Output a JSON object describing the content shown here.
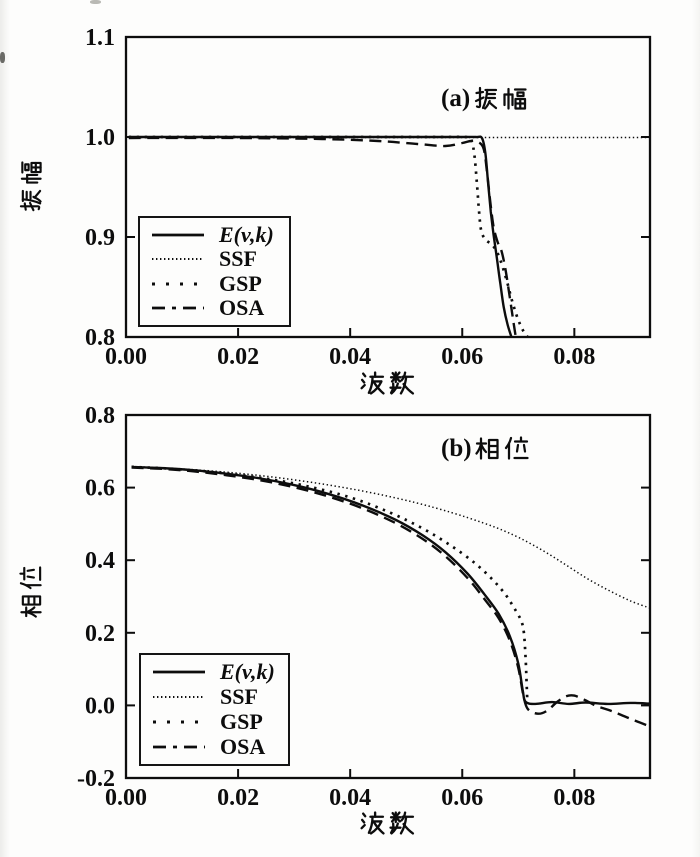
{
  "page": {
    "background": "#fdfdfc",
    "ink": "#0d0d0d"
  },
  "chart_data": [
    {
      "id": "amplitude",
      "type": "line",
      "title_prefix": "(a)",
      "title_cjk": "振幅",
      "xlabel": "波数",
      "ylabel": "振幅",
      "xlim": [
        0,
        0.0935
      ],
      "ylim": [
        0.8,
        1.1
      ],
      "grid": false,
      "x_ticks": {
        "values": [
          0,
          0.02,
          0.04,
          0.06,
          0.08
        ],
        "labels": [
          "0.00",
          "0.02",
          "0.04",
          "0.06",
          "0.08"
        ]
      },
      "y_ticks": {
        "values": [
          1.1,
          1.0,
          0.9,
          0.8
        ],
        "labels": [
          "1.1",
          "1.0",
          "0.9",
          "0.8"
        ]
      },
      "legend": {
        "position": "lower-left",
        "entries": [
          {
            "label": "E(v,k)",
            "style": "solid",
            "italic": true
          },
          {
            "label": "SSF",
            "style": "fine-dot",
            "italic": false
          },
          {
            "label": "GSP",
            "style": "dot",
            "italic": false
          },
          {
            "label": "OSA",
            "style": "dash",
            "italic": false
          }
        ]
      },
      "series": [
        {
          "name": "SSF",
          "style": "fine-dot",
          "points": [
            [
              0.0005,
              0.9995
            ],
            [
              0.0935,
              0.9995
            ]
          ]
        },
        {
          "name": "GSP",
          "style": "dot",
          "points": [
            [
              0.0005,
              1.0
            ],
            [
              0.02,
              1.0
            ],
            [
              0.04,
              1.0
            ],
            [
              0.055,
              1.0
            ],
            [
              0.0605,
              1.0
            ],
            [
              0.0615,
              0.998
            ],
            [
              0.0621,
              0.985
            ],
            [
              0.0626,
              0.955
            ],
            [
              0.063,
              0.925
            ],
            [
              0.0634,
              0.906
            ],
            [
              0.0642,
              0.897
            ],
            [
              0.0652,
              0.893
            ],
            [
              0.0662,
              0.885
            ],
            [
              0.0671,
              0.872
            ],
            [
              0.068,
              0.855
            ],
            [
              0.069,
              0.834
            ],
            [
              0.07,
              0.817
            ],
            [
              0.071,
              0.805
            ],
            [
              0.072,
              0.798
            ]
          ]
        },
        {
          "name": "OSA",
          "style": "dash",
          "points": [
            [
              0.0005,
              0.999
            ],
            [
              0.02,
              0.999
            ],
            [
              0.035,
              0.998
            ],
            [
              0.045,
              0.996
            ],
            [
              0.052,
              0.993
            ],
            [
              0.057,
              0.991
            ],
            [
              0.06,
              0.994
            ],
            [
              0.062,
              0.996
            ],
            [
              0.0637,
              0.99
            ],
            [
              0.0644,
              0.966
            ],
            [
              0.065,
              0.935
            ],
            [
              0.0656,
              0.91
            ],
            [
              0.0663,
              0.895
            ],
            [
              0.067,
              0.886
            ],
            [
              0.0677,
              0.868
            ],
            [
              0.0684,
              0.843
            ],
            [
              0.069,
              0.82
            ],
            [
              0.0696,
              0.798
            ]
          ]
        },
        {
          "name": "E(v,k)",
          "style": "solid",
          "points": [
            [
              0.0005,
              1.0
            ],
            [
              0.02,
              1.0
            ],
            [
              0.04,
              1.0
            ],
            [
              0.055,
              1.0
            ],
            [
              0.06,
              1.0
            ],
            [
              0.0625,
              1.0
            ],
            [
              0.0635,
              0.999
            ],
            [
              0.0641,
              0.985
            ],
            [
              0.0646,
              0.955
            ],
            [
              0.0651,
              0.925
            ],
            [
              0.0656,
              0.902
            ],
            [
              0.0662,
              0.878
            ],
            [
              0.0668,
              0.853
            ],
            [
              0.0674,
              0.83
            ],
            [
              0.0681,
              0.812
            ],
            [
              0.0689,
              0.798
            ]
          ]
        }
      ]
    },
    {
      "id": "phase",
      "type": "line",
      "title_prefix": "(b)",
      "title_cjk": "相位",
      "xlabel": "波数",
      "ylabel": "相位",
      "xlim": [
        0,
        0.0935
      ],
      "ylim": [
        -0.2,
        0.8
      ],
      "grid": false,
      "x_ticks": {
        "values": [
          0,
          0.02,
          0.04,
          0.06,
          0.08
        ],
        "labels": [
          "0.00",
          "0.02",
          "0.04",
          "0.06",
          "0.08"
        ]
      },
      "y_ticks": {
        "values": [
          0.8,
          0.6,
          0.4,
          0.2,
          0.0,
          -0.2
        ],
        "labels": [
          "0.8",
          "0.6",
          "0.4",
          "0.2",
          "0.0",
          "-0.2"
        ]
      },
      "legend": {
        "position": "lower-left",
        "entries": [
          {
            "label": "E(v,k)",
            "style": "solid",
            "italic": true
          },
          {
            "label": "SSF",
            "style": "fine-dot",
            "italic": false
          },
          {
            "label": "GSP",
            "style": "dot",
            "italic": false
          },
          {
            "label": "OSA",
            "style": "dash",
            "italic": false
          }
        ]
      },
      "series": [
        {
          "name": "SSF",
          "style": "fine-dot",
          "points": [
            [
              0.001,
              0.658
            ],
            [
              0.008,
              0.653
            ],
            [
              0.016,
              0.645
            ],
            [
              0.024,
              0.633
            ],
            [
              0.032,
              0.617
            ],
            [
              0.04,
              0.597
            ],
            [
              0.048,
              0.572
            ],
            [
              0.055,
              0.545
            ],
            [
              0.061,
              0.517
            ],
            [
              0.066,
              0.49
            ],
            [
              0.07,
              0.463
            ],
            [
              0.074,
              0.43
            ],
            [
              0.078,
              0.392
            ],
            [
              0.082,
              0.352
            ],
            [
              0.086,
              0.318
            ],
            [
              0.09,
              0.288
            ],
            [
              0.0935,
              0.268
            ]
          ]
        },
        {
          "name": "GSP",
          "style": "dot",
          "points": [
            [
              0.001,
              0.657
            ],
            [
              0.008,
              0.652
            ],
            [
              0.016,
              0.642
            ],
            [
              0.024,
              0.627
            ],
            [
              0.032,
              0.605
            ],
            [
              0.04,
              0.573
            ],
            [
              0.047,
              0.532
            ],
            [
              0.053,
              0.487
            ],
            [
              0.058,
              0.44
            ],
            [
              0.062,
              0.395
            ],
            [
              0.065,
              0.353
            ],
            [
              0.0675,
              0.31
            ],
            [
              0.069,
              0.275
            ],
            [
              0.07,
              0.249
            ],
            [
              0.0706,
              0.23
            ],
            [
              0.071,
              0.2
            ],
            [
              0.0713,
              0.13
            ],
            [
              0.0715,
              0.055
            ],
            [
              0.0716,
              0.012
            ]
          ]
        },
        {
          "name": "OSA",
          "style": "dash",
          "points": [
            [
              0.001,
              0.655
            ],
            [
              0.006,
              0.652
            ],
            [
              0.012,
              0.645
            ],
            [
              0.018,
              0.634
            ],
            [
              0.024,
              0.62
            ],
            [
              0.03,
              0.601
            ],
            [
              0.036,
              0.576
            ],
            [
              0.042,
              0.544
            ],
            [
              0.048,
              0.503
            ],
            [
              0.053,
              0.458
            ],
            [
              0.057,
              0.411
            ],
            [
              0.061,
              0.35
            ],
            [
              0.064,
              0.292
            ],
            [
              0.0665,
              0.24
            ],
            [
              0.0685,
              0.178
            ],
            [
              0.07,
              0.103
            ],
            [
              0.0709,
              0.028
            ],
            [
              0.0717,
              -0.01
            ],
            [
              0.0735,
              -0.023
            ],
            [
              0.0752,
              -0.014
            ],
            [
              0.0768,
              0.008
            ],
            [
              0.0785,
              0.025
            ],
            [
              0.08,
              0.027
            ],
            [
              0.082,
              0.014
            ],
            [
              0.084,
              -0.002
            ],
            [
              0.086,
              -0.012
            ],
            [
              0.088,
              -0.024
            ],
            [
              0.0905,
              -0.04
            ],
            [
              0.0935,
              -0.058
            ]
          ]
        },
        {
          "name": "E(v,k)",
          "style": "solid",
          "points": [
            [
              0.001,
              0.657
            ],
            [
              0.006,
              0.654
            ],
            [
              0.012,
              0.648
            ],
            [
              0.018,
              0.638
            ],
            [
              0.024,
              0.625
            ],
            [
              0.03,
              0.607
            ],
            [
              0.036,
              0.583
            ],
            [
              0.042,
              0.552
            ],
            [
              0.048,
              0.512
            ],
            [
              0.053,
              0.468
            ],
            [
              0.057,
              0.422
            ],
            [
              0.061,
              0.362
            ],
            [
              0.064,
              0.305
            ],
            [
              0.0665,
              0.252
            ],
            [
              0.0685,
              0.19
            ],
            [
              0.07,
              0.115
            ],
            [
              0.0708,
              0.04
            ],
            [
              0.0713,
              0.01
            ],
            [
              0.073,
              0.004
            ],
            [
              0.076,
              0.009
            ],
            [
              0.079,
              0.004
            ],
            [
              0.082,
              0.008
            ],
            [
              0.086,
              0.004
            ],
            [
              0.09,
              0.007
            ],
            [
              0.0935,
              0.005
            ]
          ]
        }
      ]
    }
  ]
}
